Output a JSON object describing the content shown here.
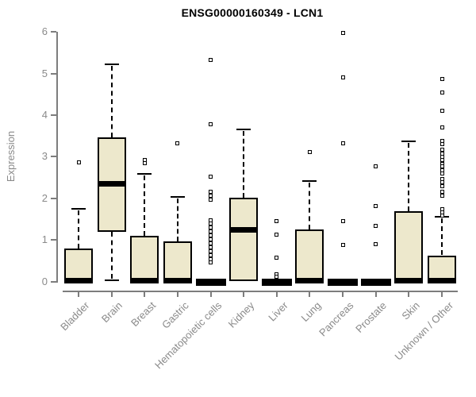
{
  "chart_data": {
    "type": "box",
    "title": "ENSG00000160349 - LCN1",
    "ylabel": "Expression",
    "xlabel": "",
    "ylim": [
      0,
      6
    ],
    "yticks": [
      0,
      1,
      2,
      3,
      4,
      5,
      6
    ],
    "grid": false,
    "legend": "none",
    "box_fill": "#EDE8CC",
    "box_border": "#000000",
    "axis_color": "#7d7d7d",
    "label_color": "#8a8a8a",
    "categories": [
      "Bladder",
      "Brain",
      "Breast",
      "Gastric",
      "Hematopoietic cells",
      "Kidney",
      "Liver",
      "Lung",
      "Pancreas",
      "Prostate",
      "Skin",
      "Unknown / Other"
    ],
    "series": [
      {
        "category": "Bladder",
        "flat": false,
        "min": 0,
        "q1": 0,
        "median": 0.02,
        "q3": 0.79,
        "whisker_high": 1.75,
        "outliers": [
          2.87
        ]
      },
      {
        "category": "Brain",
        "flat": false,
        "min": 0.02,
        "q1": 1.19,
        "median": 2.34,
        "q3": 3.46,
        "whisker_high": 5.22,
        "outliers": []
      },
      {
        "category": "Breast",
        "flat": false,
        "min": 0,
        "q1": 0,
        "median": 0.02,
        "q3": 1.1,
        "whisker_high": 2.58,
        "outliers": [
          2.92,
          2.85
        ]
      },
      {
        "category": "Gastric",
        "flat": false,
        "min": 0,
        "q1": 0,
        "median": 0.02,
        "q3": 0.96,
        "whisker_high": 2.03,
        "outliers": [
          3.33
        ]
      },
      {
        "category": "Hematopoietic cells",
        "flat": true,
        "min": 0,
        "q1": 0,
        "median": 0,
        "q3": 0,
        "whisker_high": 0,
        "outliers": [
          5.33,
          3.79,
          2.52,
          2.15,
          2.06,
          1.96,
          1.48,
          1.39,
          1.29,
          1.2,
          1.1,
          1.01,
          0.91,
          0.82,
          0.72,
          0.63,
          0.53,
          0.45
        ]
      },
      {
        "category": "Kidney",
        "flat": false,
        "min": 0,
        "q1": 0,
        "median": 1.24,
        "q3": 2.01,
        "whisker_high": 3.65,
        "outliers": []
      },
      {
        "category": "Liver",
        "flat": true,
        "min": 0,
        "q1": 0,
        "median": 0,
        "q3": 0,
        "whisker_high": 0,
        "outliers": [
          1.46,
          1.12,
          0.58,
          0.18,
          0.12
        ]
      },
      {
        "category": "Lung",
        "flat": false,
        "min": 0,
        "q1": 0,
        "median": 0.02,
        "q3": 1.25,
        "whisker_high": 2.42,
        "outliers": [
          3.12
        ]
      },
      {
        "category": "Pancreas",
        "flat": true,
        "min": 0,
        "q1": 0,
        "median": 0,
        "q3": 0,
        "whisker_high": 0,
        "outliers": [
          5.97,
          4.91,
          3.33,
          1.46,
          0.87
        ]
      },
      {
        "category": "Prostate",
        "flat": true,
        "min": 0,
        "q1": 0,
        "median": 0,
        "q3": 0,
        "whisker_high": 0,
        "outliers": [
          2.76,
          1.82,
          1.33,
          0.89
        ]
      },
      {
        "category": "Skin",
        "flat": false,
        "min": 0,
        "q1": 0,
        "median": 0.02,
        "q3": 1.69,
        "whisker_high": 3.37,
        "outliers": []
      },
      {
        "category": "Unknown / Other",
        "flat": false,
        "min": 0,
        "q1": 0,
        "median": 0.02,
        "q3": 0.63,
        "whisker_high": 1.55,
        "outliers": [
          4.87,
          4.54,
          4.11,
          3.71,
          3.38,
          3.3,
          3.17,
          3.08,
          3.0,
          2.92,
          2.83,
          2.76,
          2.68,
          2.6,
          2.47,
          2.39,
          2.3,
          2.15,
          2.07,
          1.74,
          1.66,
          1.58
        ]
      }
    ]
  }
}
